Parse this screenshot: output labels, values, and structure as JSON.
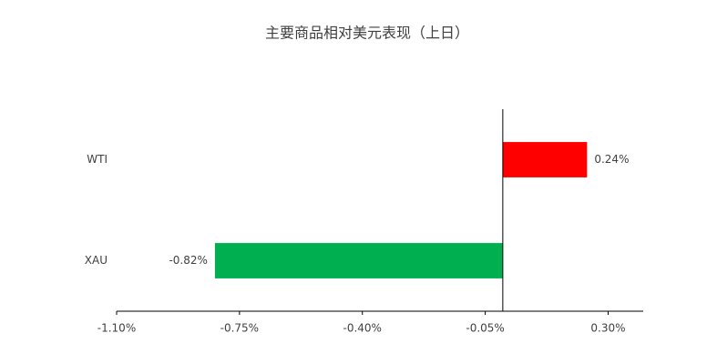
{
  "chart_data": {
    "type": "bar",
    "orientation": "horizontal",
    "title": "主要商品相对美元表现（上日）",
    "categories": [
      "WTI",
      "XAU"
    ],
    "values": [
      0.24,
      -0.82
    ],
    "value_labels": [
      "0.24%",
      "-0.82%"
    ],
    "colors": [
      "#ff0000",
      "#00b050"
    ],
    "xlim": [
      -1.1,
      0.4
    ],
    "xticks": [
      {
        "value": -1.1,
        "label": "-1.10%"
      },
      {
        "value": -0.75,
        "label": "-0.75%"
      },
      {
        "value": -0.4,
        "label": "-0.40%"
      },
      {
        "value": -0.05,
        "label": "-0.05%"
      },
      {
        "value": 0.3,
        "label": "0.30%"
      }
    ],
    "grid": false
  }
}
